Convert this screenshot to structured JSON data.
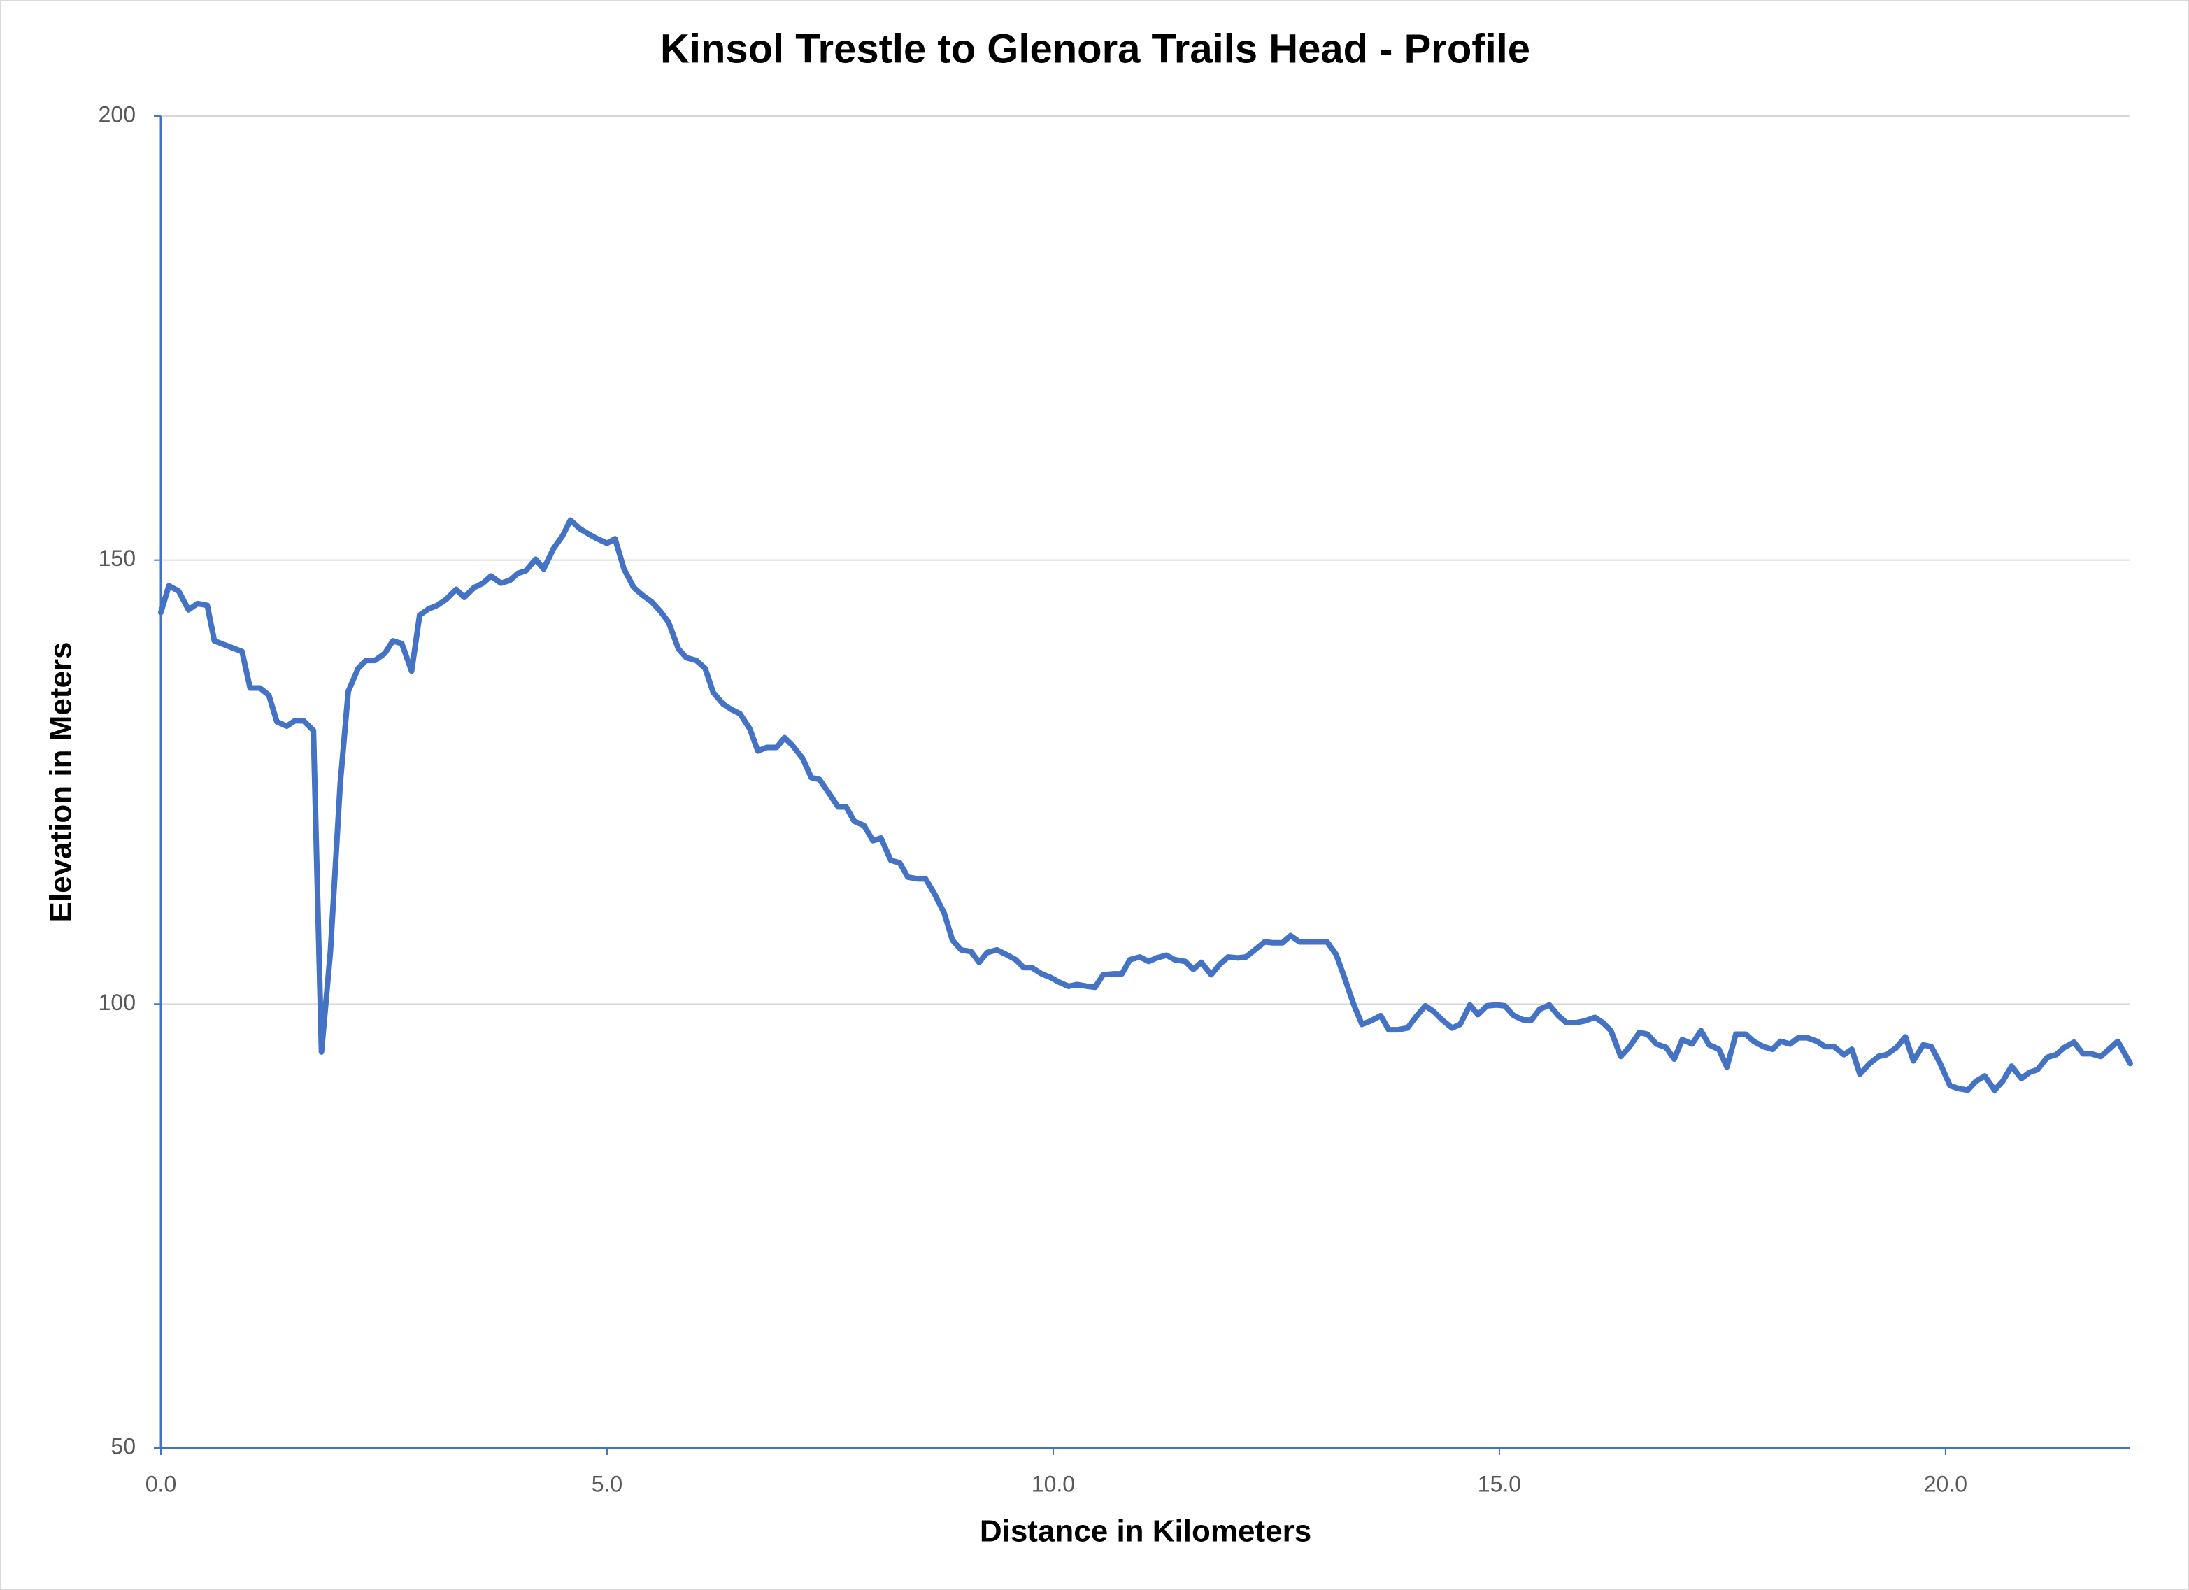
{
  "chart_data": {
    "type": "line",
    "title": "Kinsol Trestle to Glenora Trails Head - Profile",
    "x_label": "Distance in Kilometers",
    "y_label": "Elevation in Meters",
    "xlim": [
      0,
      22.07
    ],
    "ylim": [
      50,
      200
    ],
    "xticks": [
      {
        "value": 0,
        "label": "0.0"
      },
      {
        "value": 5,
        "label": "5.0"
      },
      {
        "value": 10,
        "label": "10.0"
      },
      {
        "value": 15,
        "label": "15.0"
      },
      {
        "value": 20,
        "label": "20.0"
      }
    ],
    "yticks": [
      50,
      100,
      150,
      200
    ],
    "grid": true,
    "x": [
      0,
      0.09,
      0.2,
      0.31,
      0.41,
      0.52,
      0.6,
      0.91,
      1.0,
      1.11,
      1.21,
      1.3,
      1.41,
      1.5,
      1.6,
      1.71,
      1.8,
      1.9,
      2.01,
      2.1,
      2.21,
      2.3,
      2.4,
      2.51,
      2.6,
      2.7,
      2.81,
      2.9,
      3.0,
      3.1,
      3.2,
      3.31,
      3.4,
      3.51,
      3.61,
      3.7,
      3.81,
      3.91,
      4.0,
      4.09,
      4.2,
      4.29,
      4.4,
      4.5,
      4.59,
      4.7,
      4.8,
      4.89,
      5.0,
      5.09,
      5.19,
      5.3,
      5.39,
      5.5,
      5.6,
      5.69,
      5.8,
      5.89,
      6.0,
      6.1,
      6.19,
      6.3,
      6.39,
      6.49,
      6.6,
      6.69,
      6.79,
      6.9,
      6.99,
      7.08,
      7.19,
      7.29,
      7.38,
      7.49,
      7.59,
      7.68,
      7.77,
      7.88,
      7.98,
      8.07,
      8.18,
      8.28,
      8.37,
      8.48,
      8.57,
      8.67,
      8.78,
      8.87,
      8.97,
      9.08,
      9.17,
      9.26,
      9.37,
      9.47,
      9.58,
      9.67,
      9.76,
      9.87,
      9.97,
      10.06,
      10.17,
      10.27,
      10.38,
      10.47,
      10.56,
      10.67,
      10.77,
      10.86,
      10.97,
      11.07,
      11.16,
      11.27,
      11.36,
      11.48,
      11.57,
      11.66,
      11.77,
      11.87,
      11.96,
      12.07,
      12.16,
      12.26,
      12.37,
      12.46,
      12.57,
      12.66,
      12.76,
      12.87,
      12.96,
      13.07,
      13.17,
      13.26,
      13.37,
      13.46,
      13.56,
      13.67,
      13.76,
      13.86,
      13.97,
      14.06,
      14.17,
      14.26,
      14.36,
      14.47,
      14.56,
      14.67,
      14.76,
      14.86,
      14.97,
      15.06,
      15.16,
      15.27,
      15.36,
      15.45,
      15.56,
      15.66,
      15.75,
      15.86,
      15.96,
      16.07,
      16.16,
      16.25,
      16.36,
      16.46,
      16.57,
      16.66,
      16.76,
      16.87,
      16.96,
      17.05,
      17.16,
      17.26,
      17.35,
      17.46,
      17.55,
      17.65,
      17.76,
      17.85,
      17.96,
      18.06,
      18.15,
      18.26,
      18.35,
      18.45,
      18.56,
      18.65,
      18.75,
      18.86,
      18.95,
      19.04,
      19.15,
      19.25,
      19.34,
      19.45,
      19.55,
      19.64,
      19.75,
      19.84,
      19.94,
      20.05,
      20.14,
      20.25,
      20.34,
      20.44,
      20.55,
      20.64,
      20.74,
      20.85,
      20.94,
      21.03,
      21.14,
      21.24,
      21.33,
      21.44,
      21.54,
      21.63,
      21.74,
      21.83,
      21.93,
      22.07
    ],
    "series": [
      {
        "color": "#4472c4",
        "values": [
          144.1,
          147.1,
          146.5,
          144.4,
          145.1,
          144.9,
          140.9,
          139.7,
          135.6,
          135.6,
          134.8,
          131.8,
          131.3,
          131.9,
          131.9,
          130.8,
          94.6,
          105.9,
          124.8,
          135.2,
          137.8,
          138.7,
          138.7,
          139.5,
          140.9,
          140.6,
          137.5,
          143.8,
          144.5,
          144.9,
          145.6,
          146.7,
          145.8,
          146.9,
          147.4,
          148.2,
          147.4,
          147.7,
          148.5,
          148.8,
          150.1,
          149.0,
          151.3,
          152.7,
          154.5,
          153.5,
          152.9,
          152.4,
          151.9,
          152.4,
          149.0,
          146.9,
          146.1,
          145.3,
          144.2,
          143.0,
          140.0,
          139.0,
          138.7,
          137.8,
          135.1,
          133.8,
          133.2,
          132.7,
          131.0,
          128.5,
          128.9,
          128.9,
          130.0,
          129.1,
          127.7,
          125.5,
          125.3,
          123.7,
          122.2,
          122.2,
          120.6,
          120.1,
          118.4,
          118.7,
          116.2,
          115.9,
          114.3,
          114.1,
          114.1,
          112.4,
          110.2,
          107.2,
          106.1,
          105.9,
          104.7,
          105.8,
          106.1,
          105.6,
          105.0,
          104.1,
          104.1,
          103.4,
          103.0,
          102.5,
          102.0,
          102.2,
          102.0,
          101.9,
          103.3,
          103.4,
          103.4,
          105.0,
          105.3,
          104.8,
          105.2,
          105.5,
          105.0,
          104.8,
          103.9,
          104.7,
          103.3,
          104.5,
          105.3,
          105.2,
          105.3,
          106.1,
          107.0,
          106.9,
          106.9,
          107.7,
          107.0,
          107.0,
          107.0,
          107.0,
          105.6,
          103.1,
          99.9,
          97.7,
          98.1,
          98.7,
          97.1,
          97.1,
          97.3,
          98.5,
          99.8,
          99.2,
          98.2,
          97.3,
          97.7,
          99.9,
          98.8,
          99.8,
          99.9,
          99.8,
          98.7,
          98.2,
          98.2,
          99.4,
          99.9,
          98.7,
          97.9,
          97.9,
          98.1,
          98.5,
          97.9,
          97.0,
          94.1,
          95.2,
          96.8,
          96.6,
          95.5,
          95.1,
          93.8,
          96.0,
          95.5,
          97.0,
          95.4,
          94.9,
          92.9,
          96.6,
          96.6,
          95.8,
          95.2,
          94.9,
          95.8,
          95.5,
          96.2,
          96.2,
          95.8,
          95.2,
          95.2,
          94.3,
          94.9,
          92.1,
          93.3,
          94.1,
          94.3,
          95.1,
          96.3,
          93.6,
          95.4,
          95.2,
          93.3,
          90.8,
          90.5,
          90.3,
          91.3,
          91.9,
          90.3,
          91.3,
          93.0,
          91.6,
          92.3,
          92.6,
          94.0,
          94.3,
          95.1,
          95.7,
          94.4,
          94.4,
          94.1,
          94.9,
          95.8,
          93.3
        ]
      }
    ]
  }
}
